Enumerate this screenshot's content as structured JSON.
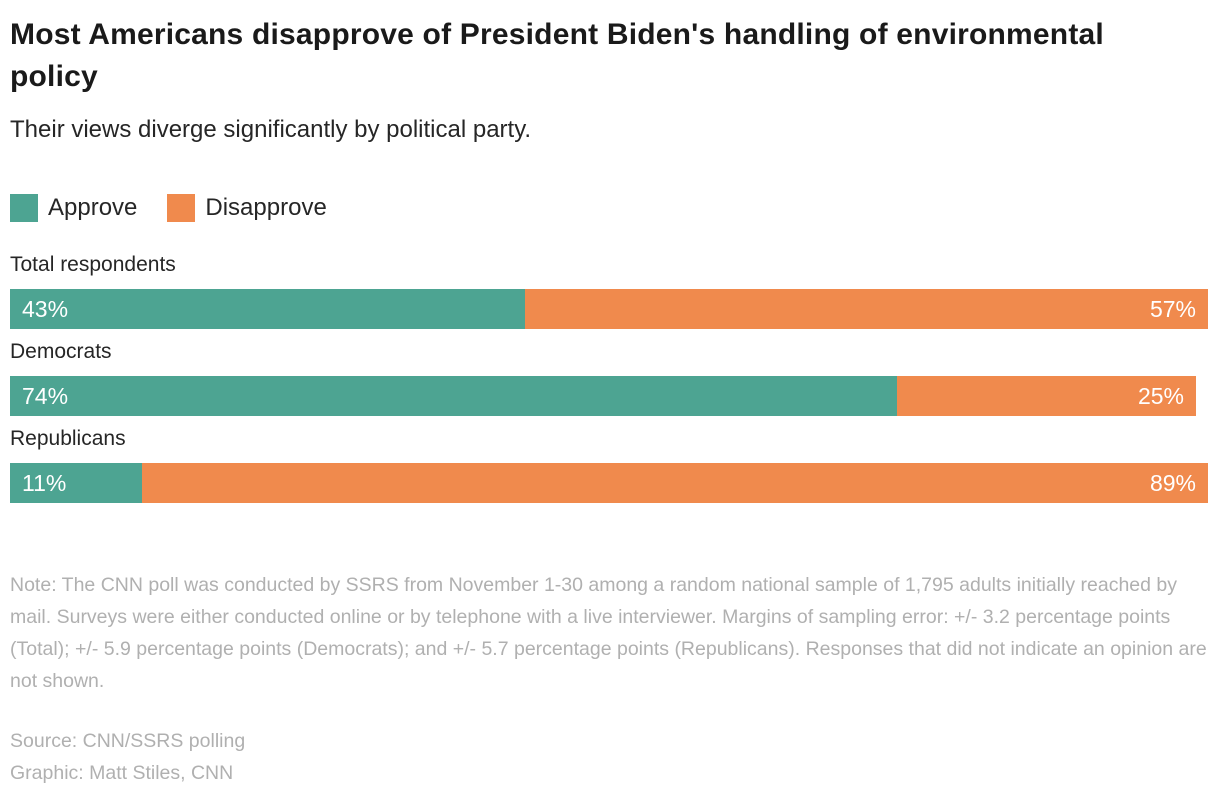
{
  "header": {
    "title": "Most Americans disapprove of President Biden's handling of environmental policy",
    "subtitle": "Their views diverge significantly by political party."
  },
  "colors": {
    "approve": "#4DA492",
    "disapprove": "#F08A4D",
    "title_text": "#1A1A1A",
    "body_text": "#262626",
    "muted_text": "#B0B0B0",
    "bar_value_text": "#FFFFFF"
  },
  "legend": {
    "items": [
      {
        "label": "Approve",
        "color": "#4DA492"
      },
      {
        "label": "Disapprove",
        "color": "#F08A4D"
      }
    ]
  },
  "chart_data": {
    "type": "bar",
    "variant": "horizontal-stacked",
    "title": "Most Americans disapprove of President Biden's handling of environmental policy",
    "subtitle": "Their views diverge significantly by political party.",
    "categories": [
      "Total respondents",
      "Democrats",
      "Republicans"
    ],
    "series": [
      {
        "name": "Approve",
        "color": "#4DA492",
        "values": [
          43,
          74,
          11
        ]
      },
      {
        "name": "Disapprove",
        "color": "#F08A4D",
        "values": [
          57,
          25,
          89
        ]
      }
    ],
    "value_suffix": "%",
    "xlim": [
      0,
      100
    ],
    "grid": false,
    "legend_position": "top"
  },
  "footer": {
    "note": "Note: The CNN poll was conducted by SSRS from November 1-30 among a random national sample of 1,795 adults initially reached by mail. Surveys were either conducted online or by telephone with a live interviewer. Margins of sampling error: +/- 3.2 percentage points (Total); +/- 5.9 percentage points (Democrats); and +/- 5.7 percentage points (Republicans). Responses that did not indicate an opinion are not shown.",
    "source": "Source: CNN/SSRS polling",
    "credit": "Graphic: Matt Stiles, CNN"
  }
}
